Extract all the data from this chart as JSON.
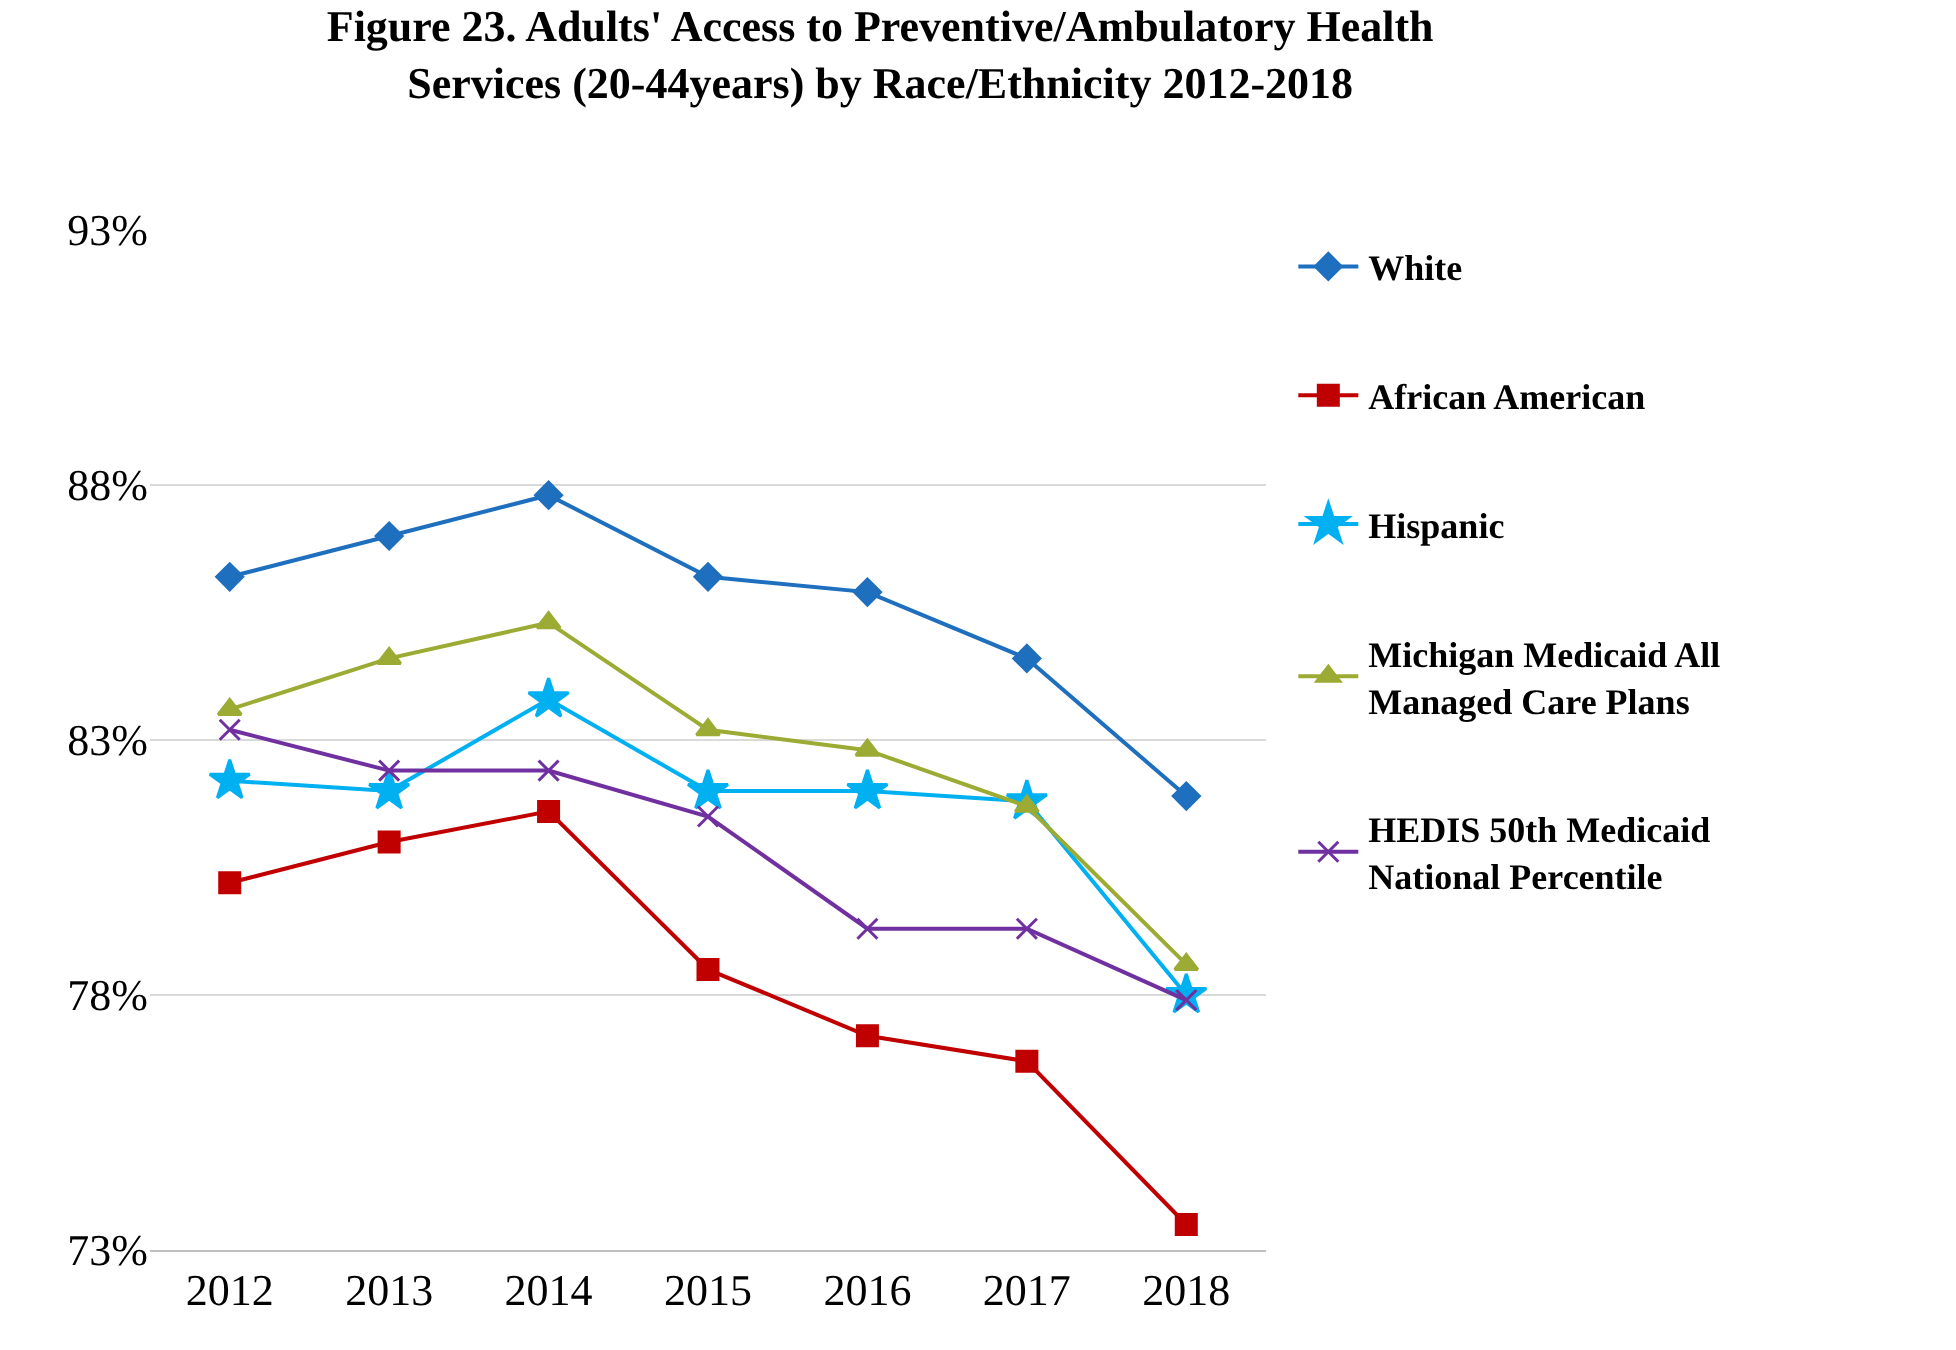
{
  "chart_data": {
    "type": "line",
    "title": "Figure 23. Adults' Access to Preventive/Ambulatory Health Services (20-44years) by Race/Ethnicity 2012-2018",
    "categories": [
      "2012",
      "2013",
      "2014",
      "2015",
      "2016",
      "2017",
      "2018"
    ],
    "series": [
      {
        "name": "White",
        "color": "#1f6fbf",
        "marker": "diamond",
        "values": [
          86.2,
          87.0,
          87.8,
          86.2,
          85.9,
          84.6,
          81.9
        ]
      },
      {
        "name": "African American",
        "color": "#c00000",
        "marker": "square",
        "values": [
          80.2,
          81.0,
          81.6,
          78.5,
          77.2,
          76.7,
          73.5
        ]
      },
      {
        "name": "Hispanic",
        "color": "#00b0f0",
        "marker": "star",
        "values": [
          82.2,
          82.0,
          83.8,
          82.0,
          82.0,
          81.8,
          78.0
        ]
      },
      {
        "name": "Michigan Medicaid All Managed Care Plans",
        "color": "#9bab33",
        "marker": "triangle",
        "values": [
          83.6,
          84.6,
          85.3,
          83.2,
          82.8,
          81.7,
          78.6
        ]
      },
      {
        "name": "HEDIS 50th Medicaid National Percentile",
        "color": "#7030a0",
        "marker": "cross",
        "values": [
          83.2,
          82.4,
          82.4,
          81.5,
          79.3,
          79.3,
          77.9
        ]
      }
    ],
    "ylim": [
      73,
      93
    ],
    "yticks": [
      {
        "value": 73,
        "label": "73%"
      },
      {
        "value": 78,
        "label": "78%"
      },
      {
        "value": 83,
        "label": "83%"
      },
      {
        "value": 88,
        "label": "88%"
      },
      {
        "value": 93,
        "label": "93%"
      }
    ],
    "grid": "y",
    "legend": "right",
    "line_style": "solid"
  }
}
